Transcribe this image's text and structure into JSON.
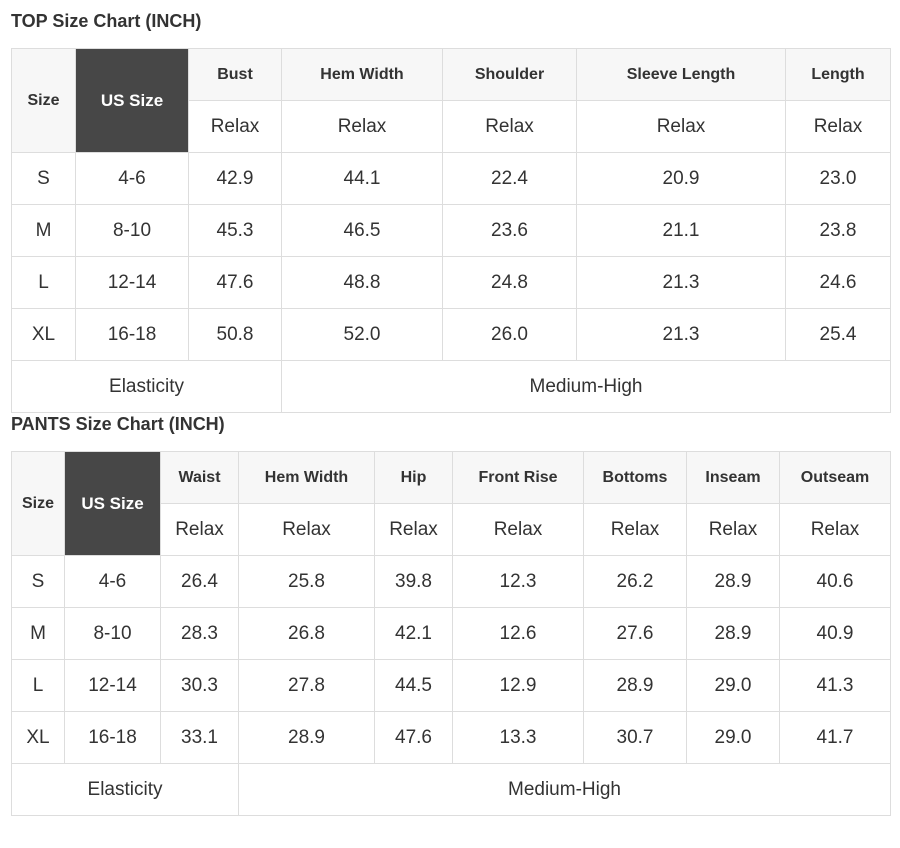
{
  "top": {
    "title": "TOP Size Chart (INCH)",
    "size_label": "Size",
    "us_size_label": "US Size",
    "columns": [
      "Bust",
      "Hem Width",
      "Shoulder",
      "Sleeve Length",
      "Length"
    ],
    "subheaders": [
      "Relax",
      "Relax",
      "Relax",
      "Relax",
      "Relax"
    ],
    "rows": [
      [
        "S",
        "4-6",
        "42.9",
        "44.1",
        "22.4",
        "20.9",
        "23.0"
      ],
      [
        "M",
        "8-10",
        "45.3",
        "46.5",
        "23.6",
        "21.1",
        "23.8"
      ],
      [
        "L",
        "12-14",
        "47.6",
        "48.8",
        "24.8",
        "21.3",
        "24.6"
      ],
      [
        "XL",
        "16-18",
        "50.8",
        "52.0",
        "26.0",
        "21.3",
        "25.4"
      ]
    ],
    "elasticity_label": "Elasticity",
    "elasticity_value": "Medium-High"
  },
  "pants": {
    "title": "PANTS Size Chart (INCH)",
    "size_label": "Size",
    "us_size_label": "US Size",
    "columns": [
      "Waist",
      "Hem Width",
      "Hip",
      "Front Rise",
      "Bottoms",
      "Inseam",
      "Outseam"
    ],
    "subheaders": [
      "Relax",
      "Relax",
      "Relax",
      "Relax",
      "Relax",
      "Relax",
      "Relax"
    ],
    "rows": [
      [
        "S",
        "4-6",
        "26.4",
        "25.8",
        "39.8",
        "12.3",
        "26.2",
        "28.9",
        "40.6"
      ],
      [
        "M",
        "8-10",
        "28.3",
        "26.8",
        "42.1",
        "12.6",
        "27.6",
        "28.9",
        "40.9"
      ],
      [
        "L",
        "12-14",
        "30.3",
        "27.8",
        "44.5",
        "12.9",
        "28.9",
        "29.0",
        "41.3"
      ],
      [
        "XL",
        "16-18",
        "33.1",
        "28.9",
        "47.6",
        "13.3",
        "30.7",
        "29.0",
        "41.7"
      ]
    ],
    "elasticity_label": "Elasticity",
    "elasticity_value": "Medium-High"
  }
}
